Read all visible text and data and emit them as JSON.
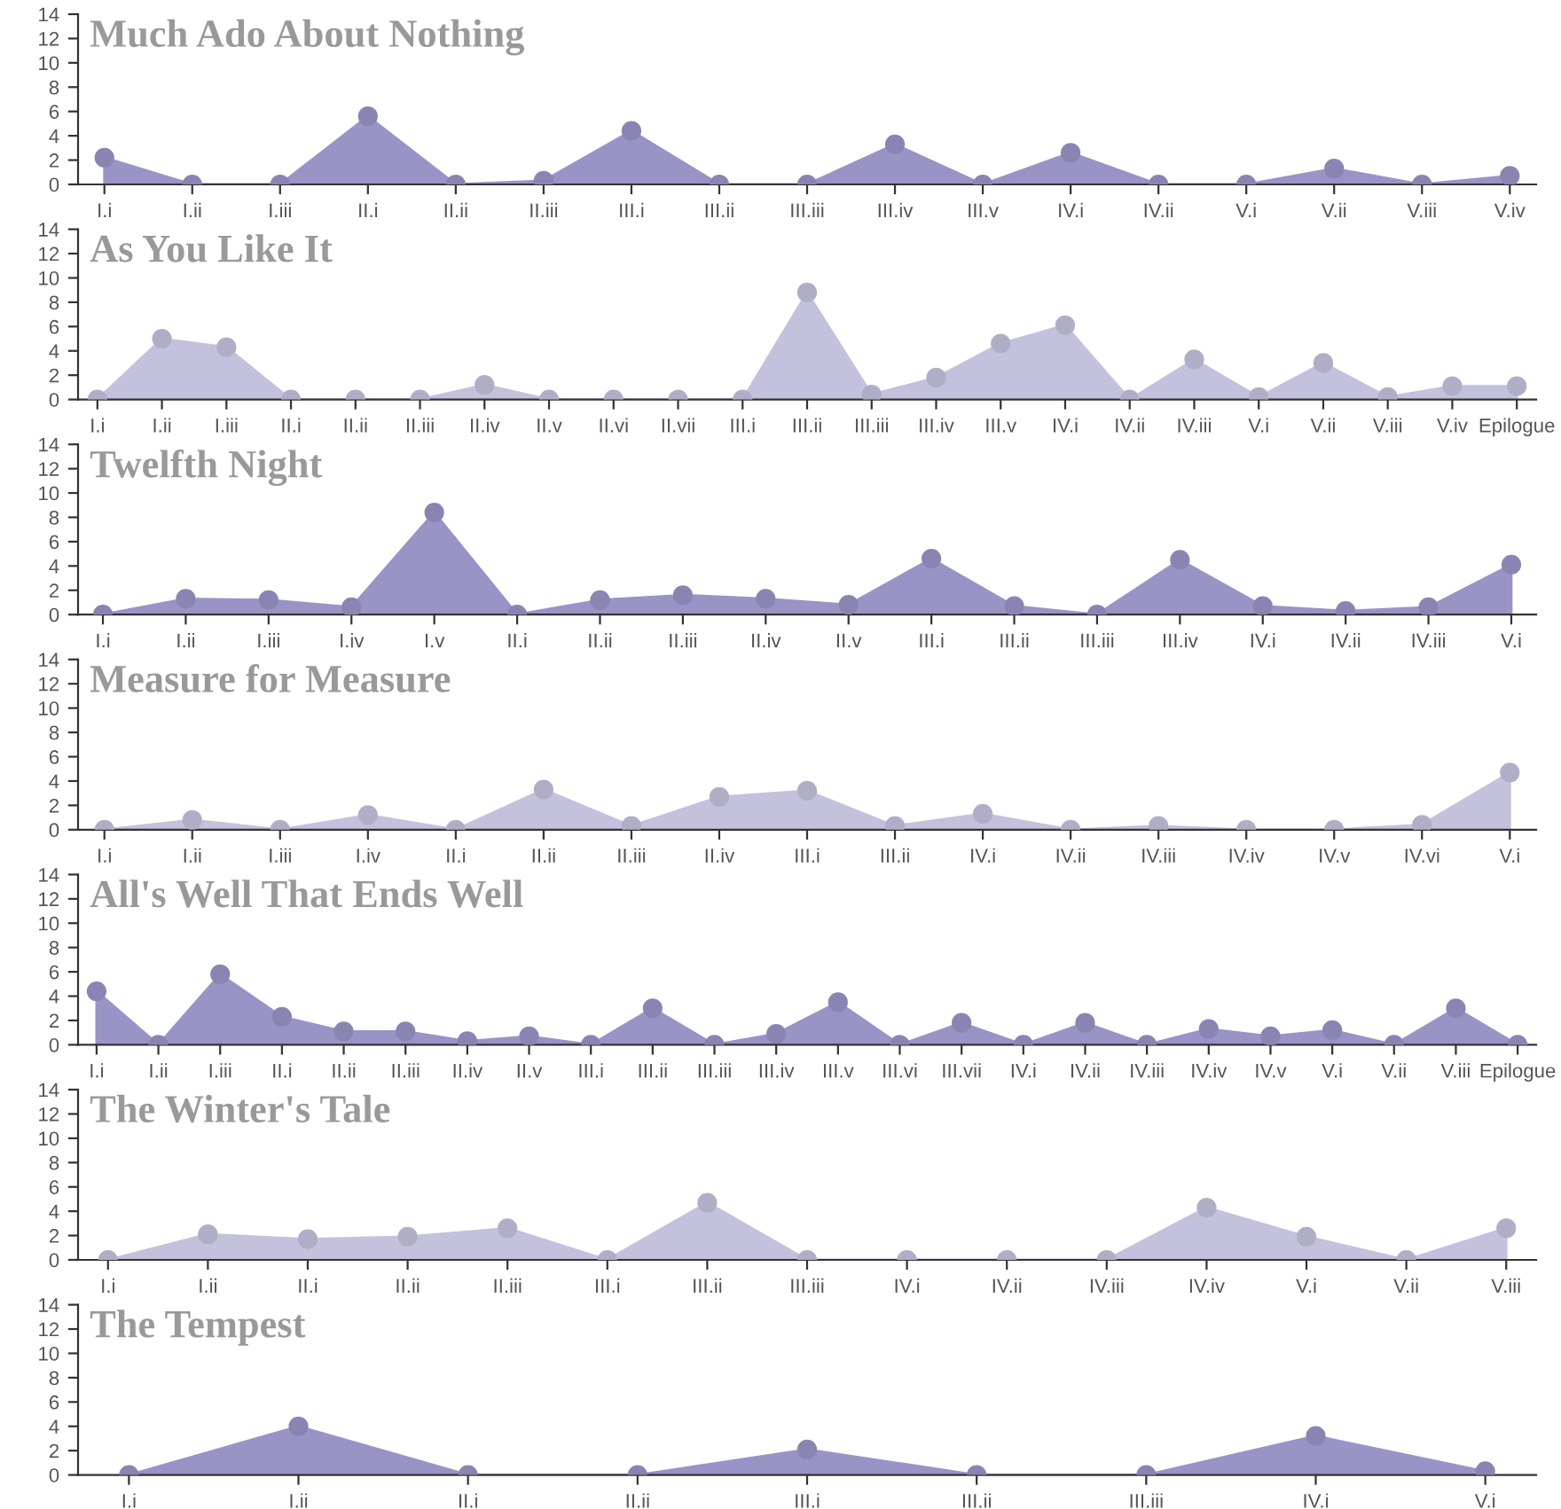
{
  "chart_data": [
    {
      "type": "area",
      "title": "Much Ado About Nothing",
      "categories": [
        "I.i",
        "I.ii",
        "I.iii",
        "II.i",
        "II.ii",
        "II.iii",
        "III.i",
        "III.ii",
        "III.iii",
        "III.iv",
        "III.v",
        "IV.i",
        "IV.ii",
        "V.i",
        "V.ii",
        "V.iii",
        "V.iv"
      ],
      "series": [
        {
          "color": "#9894c6",
          "values": [
            2.2,
            0,
            0,
            5.6,
            0,
            0.3,
            4.4,
            0,
            0,
            3.3,
            0,
            2.6,
            0,
            0,
            1.3,
            0,
            0.7
          ]
        }
      ],
      "ylim": [
        0,
        14
      ],
      "yticks": [
        0,
        2,
        4,
        6,
        8,
        10,
        12,
        14
      ],
      "marker": "circle"
    },
    {
      "type": "area",
      "title": "As You Like It",
      "categories": [
        "I.i",
        "I.ii",
        "I.iii",
        "II.i",
        "II.ii",
        "II.iii",
        "II.iv",
        "II.v",
        "II.vi",
        "II.vii",
        "III.i",
        "III.ii",
        "III.iii",
        "III.iv",
        "III.v",
        "IV.i",
        "IV.ii",
        "IV.iii",
        "V.i",
        "V.ii",
        "V.iii",
        "V.iv",
        "Epilogue"
      ],
      "series": [
        {
          "color": "#c4c1dd",
          "values": [
            0,
            5.0,
            4.3,
            0,
            0,
            0,
            1.2,
            0,
            0,
            0,
            0,
            8.8,
            0.4,
            1.8,
            4.6,
            6.1,
            0,
            3.3,
            0.2,
            3.0,
            0.2,
            1.1,
            1.1
          ]
        }
      ],
      "ylim": [
        0,
        14
      ],
      "yticks": [
        0,
        2,
        4,
        6,
        8,
        10,
        12,
        14
      ],
      "marker": "circle"
    },
    {
      "type": "area",
      "title": "Twelfth Night",
      "categories": [
        "I.i",
        "I.ii",
        "I.iii",
        "I.iv",
        "I.v",
        "II.i",
        "II.ii",
        "II.iii",
        "II.iv",
        "II.v",
        "III.i",
        "III.ii",
        "III.iii",
        "III.iv",
        "IV.i",
        "IV.ii",
        "IV.iii",
        "V.i"
      ],
      "series": [
        {
          "color": "#9894c6",
          "values": [
            0,
            1.3,
            1.2,
            0.6,
            8.4,
            0,
            1.2,
            1.6,
            1.3,
            0.8,
            4.6,
            0.7,
            0,
            4.5,
            0.7,
            0.3,
            0.6,
            4.1
          ]
        }
      ],
      "ylim": [
        0,
        14
      ],
      "yticks": [
        0,
        2,
        4,
        6,
        8,
        10,
        12,
        14
      ],
      "marker": "circle"
    },
    {
      "type": "area",
      "title": "Measure for Measure",
      "categories": [
        "I.i",
        "I.ii",
        "I.iii",
        "I.iv",
        "II.i",
        "II.ii",
        "II.iii",
        "II.iv",
        "III.i",
        "III.ii",
        "IV.i",
        "IV.ii",
        "IV.iii",
        "IV.iv",
        "IV.v",
        "IV.vi",
        "V.i"
      ],
      "series": [
        {
          "color": "#c4c1dd",
          "values": [
            0,
            0.8,
            0,
            1.2,
            0,
            3.3,
            0.3,
            2.7,
            3.2,
            0.3,
            1.3,
            0,
            0.3,
            0,
            0,
            0.4,
            4.7
          ]
        }
      ],
      "ylim": [
        0,
        14
      ],
      "yticks": [
        0,
        2,
        4,
        6,
        8,
        10,
        12,
        14
      ],
      "marker": "circle"
    },
    {
      "type": "area",
      "title": "All's Well That Ends Well",
      "categories": [
        "I.i",
        "I.ii",
        "I.iii",
        "II.i",
        "II.ii",
        "II.iii",
        "II.iv",
        "II.v",
        "III.i",
        "III.ii",
        "III.iii",
        "III.iv",
        "III.v",
        "III.vi",
        "III.vii",
        "IV.i",
        "IV.ii",
        "IV.iii",
        "IV.iv",
        "IV.v",
        "V.i",
        "V.ii",
        "V.iii",
        "Epilogue"
      ],
      "series": [
        {
          "color": "#9894c6",
          "values": [
            4.4,
            0,
            5.8,
            2.3,
            1.1,
            1.1,
            0.3,
            0.7,
            0,
            3.0,
            0,
            0.9,
            3.5,
            0,
            1.8,
            0,
            1.8,
            0,
            1.3,
            0.7,
            1.2,
            0,
            3.0,
            0
          ]
        }
      ],
      "ylim": [
        0,
        14
      ],
      "yticks": [
        0,
        2,
        4,
        6,
        8,
        10,
        12,
        14
      ],
      "marker": "circle"
    },
    {
      "type": "area",
      "title": "The Winter's Tale",
      "categories": [
        "I.i",
        "I.ii",
        "II.i",
        "II.ii",
        "II.iii",
        "III.i",
        "III.ii",
        "III.iii",
        "IV.i",
        "IV.ii",
        "IV.iii",
        "IV.iv",
        "V.i",
        "V.ii",
        "V.iii"
      ],
      "series": [
        {
          "color": "#c4c1dd",
          "values": [
            0,
            2.1,
            1.7,
            1.9,
            2.6,
            0,
            4.7,
            0,
            0,
            0,
            0,
            4.3,
            1.9,
            0,
            2.6
          ]
        }
      ],
      "ylim": [
        0,
        14
      ],
      "yticks": [
        0,
        2,
        4,
        6,
        8,
        10,
        12,
        14
      ],
      "marker": "circle"
    },
    {
      "type": "area",
      "title": "The Tempest",
      "categories": [
        "I.i",
        "I.ii",
        "II.i",
        "II.ii",
        "III.i",
        "III.ii",
        "III.iii",
        "IV.i",
        "V.i"
      ],
      "series": [
        {
          "color": "#9894c6",
          "values": [
            0,
            4.0,
            0,
            0,
            2.1,
            0,
            0,
            3.2,
            0.3
          ]
        }
      ],
      "ylim": [
        0,
        14
      ],
      "yticks": [
        0,
        2,
        4,
        6,
        8,
        10,
        12,
        14
      ],
      "marker": "circle"
    }
  ]
}
